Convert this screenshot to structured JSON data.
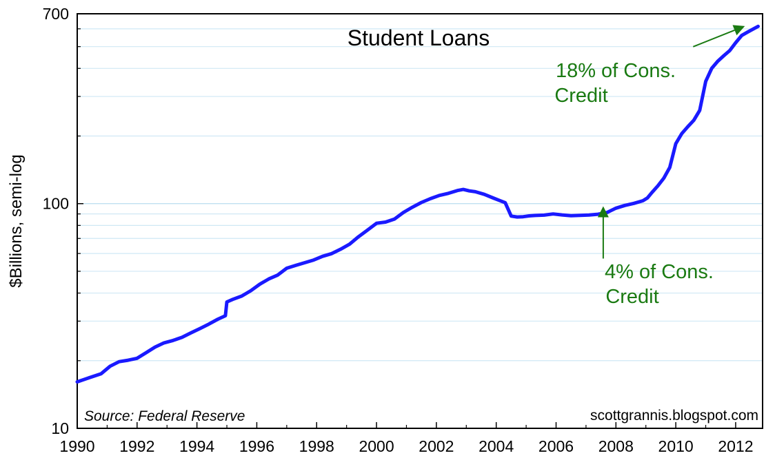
{
  "chart_data": {
    "type": "line",
    "title": "Student Loans",
    "xlabel": "",
    "ylabel": "$Billions, semi-log",
    "yscale": "log",
    "xlim": [
      1990,
      2012.9
    ],
    "ylim": [
      10,
      700
    ],
    "grid": true,
    "x_ticks": [
      "1990",
      "1992",
      "1994",
      "1996",
      "1998",
      "2000",
      "2002",
      "2004",
      "2006",
      "2008",
      "2010",
      "2012"
    ],
    "y_ticks": [
      "10",
      "100",
      "700"
    ],
    "source": "Source: Federal Reserve",
    "credit": "scottgrannis.blogspot.com",
    "line_color": "#1a1aff",
    "annotation_color": "#1a7a12",
    "annotations": [
      {
        "lines": [
          "18% of Cons.",
          "Credit"
        ],
        "x": 2012.4,
        "y": 600
      },
      {
        "lines": [
          "4% of Cons.",
          "Credit"
        ],
        "x": 2009.05,
        "y": 106
      }
    ],
    "series": [
      {
        "x": [
          1990.0,
          1990.4,
          1990.8,
          1991.1,
          1991.4,
          1991.7,
          1992.0,
          1992.3,
          1992.6,
          1992.9,
          1993.2,
          1993.5,
          1993.8,
          1994.1,
          1994.4,
          1994.7,
          1994.95,
          1995.0,
          1995.2,
          1995.5,
          1995.8,
          1996.1,
          1996.4,
          1996.7,
          1997.0,
          1997.3,
          1997.6,
          1997.9,
          1998.2,
          1998.5,
          1998.8,
          1999.1,
          1999.4,
          1999.7,
          2000.0,
          2000.3,
          2000.6,
          2000.9,
          2001.2,
          2001.5,
          2001.8,
          2002.1,
          2002.4,
          2002.7,
          2002.9,
          2003.1,
          2003.3,
          2003.6,
          2003.9,
          2004.1,
          2004.3,
          2004.5,
          2004.7,
          2004.9,
          2005.1,
          2005.3,
          2005.6,
          2005.9,
          2006.2,
          2006.5,
          2006.8,
          2007.1,
          2007.4,
          2007.7,
          2008.0,
          2008.3,
          2008.6,
          2008.9,
          2009.05,
          2009.2,
          2009.4,
          2009.6,
          2009.8,
          2010.0,
          2010.2,
          2010.4,
          2010.6,
          2010.8,
          2011.0,
          2011.2,
          2011.4,
          2011.6,
          2011.8,
          2012.0,
          2012.2,
          2012.4,
          2012.6,
          2012.75
        ],
        "values": [
          16.1,
          16.8,
          17.5,
          18.9,
          19.8,
          20.1,
          20.5,
          21.7,
          23.0,
          24.0,
          24.6,
          25.4,
          26.6,
          27.8,
          29.1,
          30.6,
          31.7,
          36.5,
          37.5,
          38.8,
          41.0,
          43.8,
          46.2,
          48.1,
          51.6,
          53.1,
          54.6,
          56.1,
          58.3,
          59.9,
          62.7,
          66.0,
          71.3,
          76.3,
          81.8,
          82.8,
          85.4,
          91.4,
          96.4,
          101.2,
          105.2,
          108.8,
          111.1,
          114.4,
          115.7,
          114.0,
          113.0,
          110.0,
          106.0,
          103.5,
          101.0,
          88.0,
          87.2,
          87.5,
          88.2,
          88.6,
          88.9,
          90.0,
          89.1,
          88.4,
          88.7,
          89.0,
          89.7,
          91.3,
          95.5,
          98.2,
          100.3,
          103.0,
          106.0,
          112.0,
          120.0,
          130.0,
          145.0,
          185.0,
          205.0,
          220.0,
          235.0,
          260.0,
          350.0,
          400.0,
          430.0,
          455.0,
          480.0,
          520.0,
          560.0,
          580.0,
          600.0,
          615.0
        ]
      }
    ]
  }
}
